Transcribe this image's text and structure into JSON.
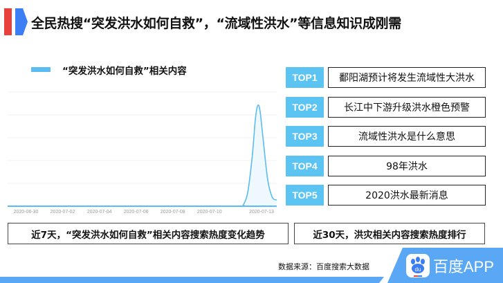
{
  "header": {
    "title": "全民热搜“突发洪水如何自救”，“流域性洪水”等信息知识成刚需"
  },
  "chart_data": {
    "type": "area",
    "series": [
      {
        "name": "“突发洪水如何自救”相关内容",
        "color": "#5bbcef",
        "x": [
          "2020-06-29 00:00",
          "2020-07-11 16:00",
          "2020-07-11 20:00",
          "2020-07-12 02:00",
          "2020-07-12 08:00",
          "2020-07-12 12:00",
          "2020-07-12 15:00",
          "2020-07-12 18:00",
          "2020-07-12 22:00",
          "2020-07-13 04:00",
          "2020-07-13 10:00",
          "2020-07-13 16:00"
        ],
        "values": [
          0,
          0,
          0.05,
          0.6,
          2.2,
          3.8,
          4.4,
          4.2,
          3.0,
          1.2,
          0.4,
          0.27
        ]
      }
    ],
    "x_tick_labels": [
      "2020-06-30",
      "2020-07-02",
      "2020-07-04",
      "2020-07-06",
      "2020-07-08",
      "2020-07-10",
      "2020-07-13"
    ],
    "xlim": [
      "2020-06-29 00:00",
      "2020-07-13 16:00"
    ],
    "ylim": [
      0,
      5
    ],
    "grid": true,
    "legend": "top-left"
  },
  "ranking": {
    "items": [
      {
        "rank": "TOP1",
        "text": "鄱阳湖预计将发生流域性大洪水"
      },
      {
        "rank": "TOP2",
        "text": "长江中下游升级洪水橙色预警"
      },
      {
        "rank": "TOP3",
        "text": "流域性洪水是什么意思"
      },
      {
        "rank": "TOP4",
        "text": "98年洪水"
      },
      {
        "rank": "TOP5",
        "text": "2020洪水最新消息"
      }
    ]
  },
  "captions": {
    "left": "近7天，“突发洪水如何自救”相关内容搜索热度变化趋势",
    "right": "近30天，洪灾相关内容搜索热度排行"
  },
  "footer": {
    "source": "数据来源：百度搜索大数据",
    "brand": "百度APP",
    "logo_text": "du",
    "brand_color": "#5aa7f5"
  }
}
